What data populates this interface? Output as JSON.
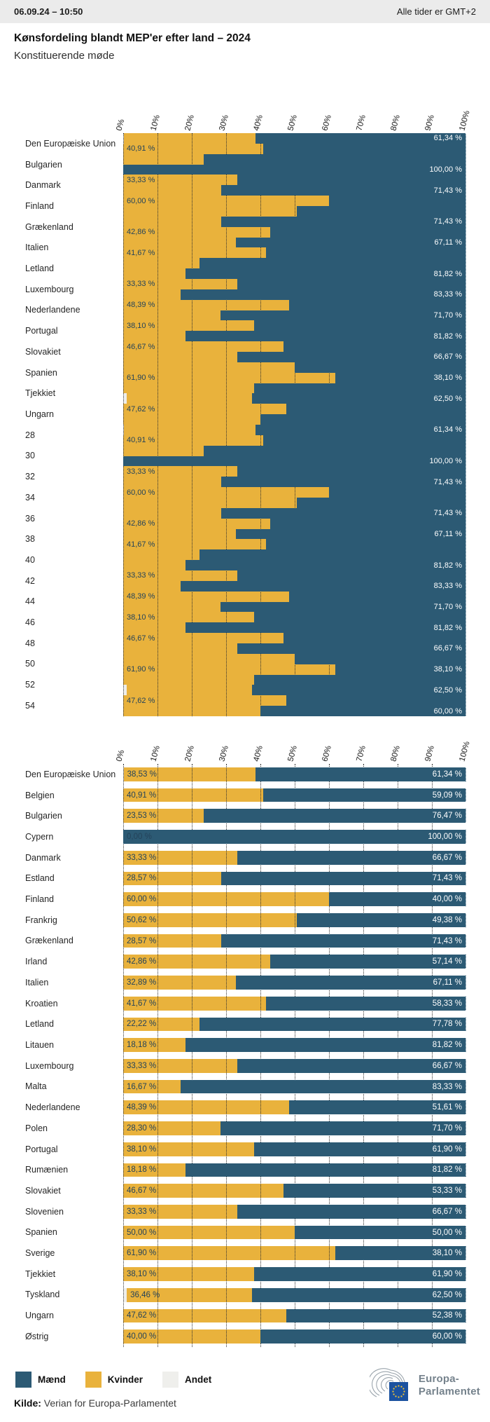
{
  "header": {
    "datetime": "06.09.24 – 10:50",
    "timezone_note": "Alle tider er GMT+2"
  },
  "title": "Kønsfordeling blandt MEP'er efter land – 2024",
  "subtitle": "Konstituerende møde",
  "colors": {
    "maend": "#2C5A74",
    "kvinder": "#E9B23C",
    "andet": "#EFEFEC",
    "header_bg": "#EBEBEB",
    "value_label_dark": "#24435A",
    "value_label_light": "#FFFFFF",
    "logo_gray": "#75828C",
    "eu_flag_blue": "#1B52A0",
    "eu_star_yellow": "#F5C530"
  },
  "legend": {
    "items": [
      {
        "label": "Mænd",
        "color_key": "maend"
      },
      {
        "label": "Kvinder",
        "color_key": "kvinder"
      },
      {
        "label": "Andet",
        "color_key": "andet"
      }
    ]
  },
  "source": {
    "label": "Kilde:",
    "text": " Verian for Europa-Parlamentet"
  },
  "logo": {
    "line1": "Europa-",
    "line2": "Parlamentet"
  },
  "chart_data": [
    {
      "name": "top-chart",
      "type": "bar",
      "stacked": true,
      "orientation": "horizontal",
      "note": "Glitched rendering: the 28-country series is drawn twice as 56 thin bars over 28 axis slots; slots 15-28 are labelled with numbers 28-54.",
      "x_ticks": [
        "0%",
        "10%",
        "20%",
        "30%",
        "40%",
        "50%",
        "60%",
        "70%",
        "80%",
        "90%",
        "100%"
      ],
      "xlim": [
        0,
        100
      ],
      "slot_labels": [
        "Den Europæiske Union",
        "Bulgarien",
        "Danmark",
        "Finland",
        "Grækenland",
        "Italien",
        "Letland",
        "Luxembourg",
        "Nederlandene",
        "Portugal",
        "Slovakiet",
        "Spanien",
        "Tjekkiet",
        "Ungarn",
        "28",
        "30",
        "32",
        "34",
        "36",
        "38",
        "40",
        "42",
        "44",
        "46",
        "48",
        "50",
        "52",
        "54"
      ],
      "bars": [
        {
          "kvinder": 38.53,
          "maend": 61.34,
          "andet": 0.13,
          "show_left_label": false,
          "show_right_label": true
        },
        {
          "kvinder": 40.91,
          "maend": 59.09,
          "andet": 0,
          "show_left_label": true,
          "show_right_label": false
        },
        {
          "kvinder": 23.53,
          "maend": 76.47,
          "andet": 0,
          "show_left_label": false,
          "show_right_label": false
        },
        {
          "kvinder": 0.0,
          "maend": 100.0,
          "andet": 0,
          "show_left_label": false,
          "show_right_label": true
        },
        {
          "kvinder": 33.33,
          "maend": 66.67,
          "andet": 0,
          "show_left_label": true,
          "show_right_label": false
        },
        {
          "kvinder": 28.57,
          "maend": 71.43,
          "andet": 0,
          "show_left_label": false,
          "show_right_label": true
        },
        {
          "kvinder": 60.0,
          "maend": 40.0,
          "andet": 0,
          "show_left_label": true,
          "show_right_label": false
        },
        {
          "kvinder": 50.62,
          "maend": 49.38,
          "andet": 0,
          "show_left_label": false,
          "show_right_label": false
        },
        {
          "kvinder": 28.57,
          "maend": 71.43,
          "andet": 0,
          "show_left_label": false,
          "show_right_label": true
        },
        {
          "kvinder": 42.86,
          "maend": 57.14,
          "andet": 0,
          "show_left_label": true,
          "show_right_label": false
        },
        {
          "kvinder": 32.89,
          "maend": 67.11,
          "andet": 0,
          "show_left_label": false,
          "show_right_label": true
        },
        {
          "kvinder": 41.67,
          "maend": 58.33,
          "andet": 0,
          "show_left_label": true,
          "show_right_label": false
        },
        {
          "kvinder": 22.22,
          "maend": 77.78,
          "andet": 0,
          "show_left_label": false,
          "show_right_label": false
        },
        {
          "kvinder": 18.18,
          "maend": 81.82,
          "andet": 0,
          "show_left_label": false,
          "show_right_label": true
        },
        {
          "kvinder": 33.33,
          "maend": 66.67,
          "andet": 0,
          "show_left_label": true,
          "show_right_label": false
        },
        {
          "kvinder": 16.67,
          "maend": 83.33,
          "andet": 0,
          "show_left_label": false,
          "show_right_label": true
        },
        {
          "kvinder": 48.39,
          "maend": 51.61,
          "andet": 0,
          "show_left_label": true,
          "show_right_label": false
        },
        {
          "kvinder": 28.3,
          "maend": 71.7,
          "andet": 0,
          "show_left_label": false,
          "show_right_label": true
        },
        {
          "kvinder": 38.1,
          "maend": 61.9,
          "andet": 0,
          "show_left_label": true,
          "show_right_label": false
        },
        {
          "kvinder": 18.18,
          "maend": 81.82,
          "andet": 0,
          "show_left_label": false,
          "show_right_label": true
        },
        {
          "kvinder": 46.67,
          "maend": 53.33,
          "andet": 0,
          "show_left_label": true,
          "show_right_label": false
        },
        {
          "kvinder": 33.33,
          "maend": 66.67,
          "andet": 0,
          "show_left_label": false,
          "show_right_label": true
        },
        {
          "kvinder": 50.0,
          "maend": 50.0,
          "andet": 0,
          "show_left_label": false,
          "show_right_label": false
        },
        {
          "kvinder": 61.9,
          "maend": 38.1,
          "andet": 0,
          "show_left_label": true,
          "show_right_label": true
        },
        {
          "kvinder": 38.1,
          "maend": 61.9,
          "andet": 0,
          "show_left_label": false,
          "show_right_label": false
        },
        {
          "kvinder": 36.46,
          "maend": 62.5,
          "andet": 1.04,
          "show_left_label": false,
          "show_right_label": true
        },
        {
          "kvinder": 47.62,
          "maend": 52.38,
          "andet": 0,
          "show_left_label": true,
          "show_right_label": false
        },
        {
          "kvinder": 40.0,
          "maend": 60.0,
          "andet": 0,
          "show_left_label": false,
          "show_right_label": false
        },
        {
          "kvinder": 38.53,
          "maend": 61.34,
          "andet": 0.13,
          "show_left_label": false,
          "show_right_label": true
        },
        {
          "kvinder": 40.91,
          "maend": 59.09,
          "andet": 0,
          "show_left_label": true,
          "show_right_label": false
        },
        {
          "kvinder": 23.53,
          "maend": 76.47,
          "andet": 0,
          "show_left_label": false,
          "show_right_label": false
        },
        {
          "kvinder": 0.0,
          "maend": 100.0,
          "andet": 0,
          "show_left_label": false,
          "show_right_label": true
        },
        {
          "kvinder": 33.33,
          "maend": 66.67,
          "andet": 0,
          "show_left_label": true,
          "show_right_label": false
        },
        {
          "kvinder": 28.57,
          "maend": 71.43,
          "andet": 0,
          "show_left_label": false,
          "show_right_label": true
        },
        {
          "kvinder": 60.0,
          "maend": 40.0,
          "andet": 0,
          "show_left_label": true,
          "show_right_label": false
        },
        {
          "kvinder": 50.62,
          "maend": 49.38,
          "andet": 0,
          "show_left_label": false,
          "show_right_label": false
        },
        {
          "kvinder": 28.57,
          "maend": 71.43,
          "andet": 0,
          "show_left_label": false,
          "show_right_label": true
        },
        {
          "kvinder": 42.86,
          "maend": 57.14,
          "andet": 0,
          "show_left_label": true,
          "show_right_label": false
        },
        {
          "kvinder": 32.89,
          "maend": 67.11,
          "andet": 0,
          "show_left_label": false,
          "show_right_label": true
        },
        {
          "kvinder": 41.67,
          "maend": 58.33,
          "andet": 0,
          "show_left_label": true,
          "show_right_label": false
        },
        {
          "kvinder": 22.22,
          "maend": 77.78,
          "andet": 0,
          "show_left_label": false,
          "show_right_label": false
        },
        {
          "kvinder": 18.18,
          "maend": 81.82,
          "andet": 0,
          "show_left_label": false,
          "show_right_label": true
        },
        {
          "kvinder": 33.33,
          "maend": 66.67,
          "andet": 0,
          "show_left_label": true,
          "show_right_label": false
        },
        {
          "kvinder": 16.67,
          "maend": 83.33,
          "andet": 0,
          "show_left_label": false,
          "show_right_label": true
        },
        {
          "kvinder": 48.39,
          "maend": 51.61,
          "andet": 0,
          "show_left_label": true,
          "show_right_label": false
        },
        {
          "kvinder": 28.3,
          "maend": 71.7,
          "andet": 0,
          "show_left_label": false,
          "show_right_label": true
        },
        {
          "kvinder": 38.1,
          "maend": 61.9,
          "andet": 0,
          "show_left_label": true,
          "show_right_label": false
        },
        {
          "kvinder": 18.18,
          "maend": 81.82,
          "andet": 0,
          "show_left_label": false,
          "show_right_label": true
        },
        {
          "kvinder": 46.67,
          "maend": 53.33,
          "andet": 0,
          "show_left_label": true,
          "show_right_label": false
        },
        {
          "kvinder": 33.33,
          "maend": 66.67,
          "andet": 0,
          "show_left_label": false,
          "show_right_label": true
        },
        {
          "kvinder": 50.0,
          "maend": 50.0,
          "andet": 0,
          "show_left_label": false,
          "show_right_label": false
        },
        {
          "kvinder": 61.9,
          "maend": 38.1,
          "andet": 0,
          "show_left_label": true,
          "show_right_label": true
        },
        {
          "kvinder": 38.1,
          "maend": 61.9,
          "andet": 0,
          "show_left_label": false,
          "show_right_label": false
        },
        {
          "kvinder": 36.46,
          "maend": 62.5,
          "andet": 1.04,
          "show_left_label": false,
          "show_right_label": true
        },
        {
          "kvinder": 47.62,
          "maend": 52.38,
          "andet": 0,
          "show_left_label": true,
          "show_right_label": false
        },
        {
          "kvinder": 40.0,
          "maend": 60.0,
          "andet": 0,
          "show_left_label": false,
          "show_right_label": true
        }
      ]
    },
    {
      "name": "bottom-chart",
      "type": "bar",
      "stacked": true,
      "orientation": "horizontal",
      "x_ticks": [
        "0%",
        "10%",
        "20%",
        "30%",
        "40%",
        "50%",
        "60%",
        "70%",
        "80%",
        "90%",
        "100%"
      ],
      "xlim": [
        0,
        100
      ],
      "series_names": [
        "Kvinder",
        "Mænd",
        "Andet"
      ],
      "rows": [
        {
          "country": "Den Europæiske Union",
          "kvinder": 38.53,
          "maend": 61.34,
          "andet": 0.13
        },
        {
          "country": "Belgien",
          "kvinder": 40.91,
          "maend": 59.09,
          "andet": 0
        },
        {
          "country": "Bulgarien",
          "kvinder": 23.53,
          "maend": 76.47,
          "andet": 0
        },
        {
          "country": "Cypern",
          "kvinder": 0.0,
          "maend": 100.0,
          "andet": 0
        },
        {
          "country": "Danmark",
          "kvinder": 33.33,
          "maend": 66.67,
          "andet": 0
        },
        {
          "country": "Estland",
          "kvinder": 28.57,
          "maend": 71.43,
          "andet": 0
        },
        {
          "country": "Finland",
          "kvinder": 60.0,
          "maend": 40.0,
          "andet": 0
        },
        {
          "country": "Frankrig",
          "kvinder": 50.62,
          "maend": 49.38,
          "andet": 0
        },
        {
          "country": "Grækenland",
          "kvinder": 28.57,
          "maend": 71.43,
          "andet": 0
        },
        {
          "country": "Irland",
          "kvinder": 42.86,
          "maend": 57.14,
          "andet": 0
        },
        {
          "country": "Italien",
          "kvinder": 32.89,
          "maend": 67.11,
          "andet": 0
        },
        {
          "country": "Kroatien",
          "kvinder": 41.67,
          "maend": 58.33,
          "andet": 0
        },
        {
          "country": "Letland",
          "kvinder": 22.22,
          "maend": 77.78,
          "andet": 0
        },
        {
          "country": "Litauen",
          "kvinder": 18.18,
          "maend": 81.82,
          "andet": 0
        },
        {
          "country": "Luxembourg",
          "kvinder": 33.33,
          "maend": 66.67,
          "andet": 0
        },
        {
          "country": "Malta",
          "kvinder": 16.67,
          "maend": 83.33,
          "andet": 0
        },
        {
          "country": "Nederlandene",
          "kvinder": 48.39,
          "maend": 51.61,
          "andet": 0
        },
        {
          "country": "Polen",
          "kvinder": 28.3,
          "maend": 71.7,
          "andet": 0
        },
        {
          "country": "Portugal",
          "kvinder": 38.1,
          "maend": 61.9,
          "andet": 0
        },
        {
          "country": "Rumænien",
          "kvinder": 18.18,
          "maend": 81.82,
          "andet": 0
        },
        {
          "country": "Slovakiet",
          "kvinder": 46.67,
          "maend": 53.33,
          "andet": 0
        },
        {
          "country": "Slovenien",
          "kvinder": 33.33,
          "maend": 66.67,
          "andet": 0
        },
        {
          "country": "Spanien",
          "kvinder": 50.0,
          "maend": 50.0,
          "andet": 0
        },
        {
          "country": "Sverige",
          "kvinder": 61.9,
          "maend": 38.1,
          "andet": 0
        },
        {
          "country": "Tjekkiet",
          "kvinder": 38.1,
          "maend": 61.9,
          "andet": 0
        },
        {
          "country": "Tyskland",
          "kvinder": 36.46,
          "maend": 62.5,
          "andet": 1.04
        },
        {
          "country": "Ungarn",
          "kvinder": 47.62,
          "maend": 52.38,
          "andet": 0
        },
        {
          "country": "Østrig",
          "kvinder": 40.0,
          "maend": 60.0,
          "andet": 0
        }
      ]
    }
  ]
}
